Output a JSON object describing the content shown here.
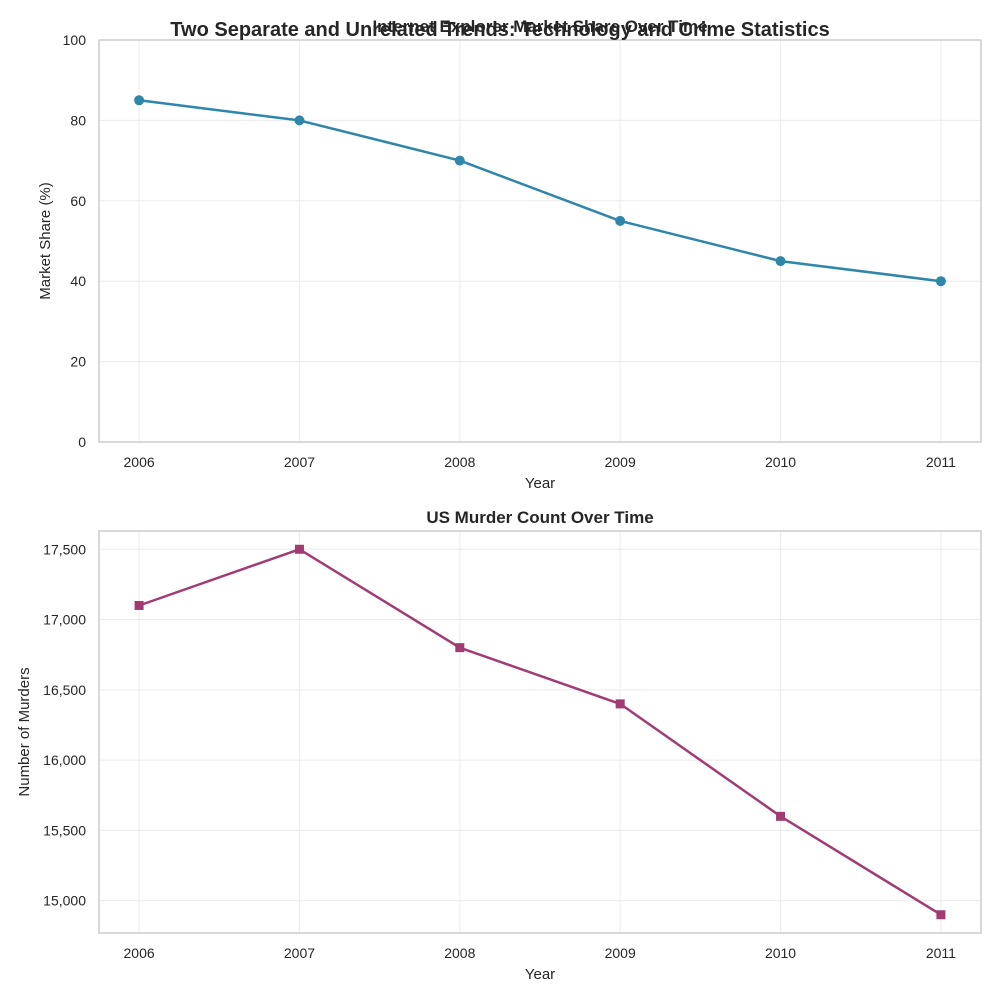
{
  "figure": {
    "suptitle": "Two Separate and Unrelated Trends: Technology and Crime Statistics"
  },
  "colors": {
    "series_1": "#2e86ab",
    "series_2": "#a23b72"
  },
  "chart_data": [
    {
      "type": "line",
      "title": "Internet Explorer Market Share Over Time",
      "xlabel": "Year",
      "ylabel": "Market Share (%)",
      "x": [
        2006,
        2007,
        2008,
        2009,
        2010,
        2011
      ],
      "x_ticks": [
        "2006",
        "2007",
        "2008",
        "2009",
        "2010",
        "2011"
      ],
      "xlim": [
        2005.75,
        2011.25
      ],
      "ylim": [
        0,
        100
      ],
      "y_ticks": [
        0,
        20,
        40,
        60,
        80,
        100
      ],
      "y_tick_labels": [
        "0",
        "20",
        "40",
        "60",
        "80",
        "100"
      ],
      "series": [
        {
          "values": [
            85,
            80,
            70,
            55,
            45,
            40
          ],
          "color": "#2e86ab",
          "marker": "circle"
        }
      ],
      "grid": true
    },
    {
      "type": "line",
      "title": "US Murder Count Over Time",
      "xlabel": "Year",
      "ylabel": "Number of Murders",
      "x": [
        2006,
        2007,
        2008,
        2009,
        2010,
        2011
      ],
      "x_ticks": [
        "2006",
        "2007",
        "2008",
        "2009",
        "2010",
        "2011"
      ],
      "xlim": [
        2005.75,
        2011.25
      ],
      "ylim": [
        14770,
        17630
      ],
      "y_ticks": [
        15000,
        15500,
        16000,
        16500,
        17000,
        17500
      ],
      "y_tick_labels": [
        "15,000",
        "15,500",
        "16,000",
        "16,500",
        "17,000",
        "17,500"
      ],
      "series": [
        {
          "values": [
            17100,
            17500,
            16800,
            16400,
            15600,
            14900
          ],
          "color": "#a23b72",
          "marker": "square"
        }
      ],
      "grid": true
    }
  ]
}
